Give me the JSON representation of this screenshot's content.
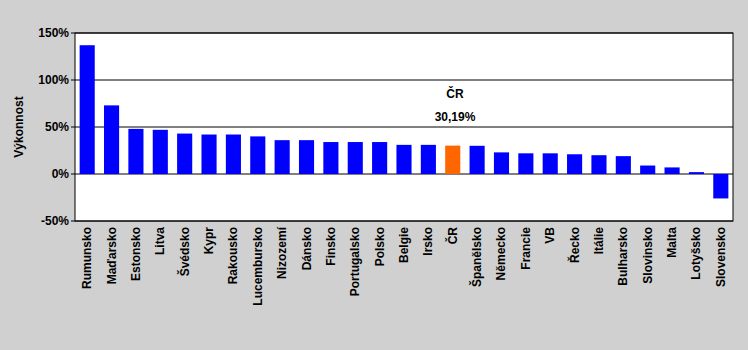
{
  "chart_data": {
    "type": "bar",
    "y_label": "Výkonnost",
    "annotations": [
      "ČR",
      "30,19%"
    ],
    "categories": [
      "Rumunsko",
      "Maďarsko",
      "Estonsko",
      "Litva",
      "Švédsko",
      "Kypr",
      "Rakousko",
      "Lucembursko",
      "Nizozemí",
      "Dánsko",
      "Finsko",
      "Portugalsko",
      "Polsko",
      "Belgie",
      "Irsko",
      "ČR",
      "Španělsko",
      "Německo",
      "Francie",
      "VB",
      "Řecko",
      "Itálie",
      "Bulharsko",
      "Slovinsko",
      "Malta",
      "Lotyšsko",
      "Slovensko"
    ],
    "values": [
      137,
      73,
      48,
      47,
      43,
      42,
      42,
      40,
      36,
      36,
      34,
      34,
      34,
      31,
      31,
      30.19,
      30,
      23,
      22,
      22,
      21,
      20,
      19,
      9,
      7,
      2,
      -26
    ],
    "colors": [
      "#0000ff",
      "#0000ff",
      "#0000ff",
      "#0000ff",
      "#0000ff",
      "#0000ff",
      "#0000ff",
      "#0000ff",
      "#0000ff",
      "#0000ff",
      "#0000ff",
      "#0000ff",
      "#0000ff",
      "#0000ff",
      "#0000ff",
      "#ff6600",
      "#0000ff",
      "#0000ff",
      "#0000ff",
      "#0000ff",
      "#0000ff",
      "#0000ff",
      "#0000ff",
      "#0000ff",
      "#0000ff",
      "#0000ff",
      "#0000ff"
    ],
    "ylim": [
      -50,
      150
    ],
    "yticks": [
      {
        "value": -50,
        "label": "-50%"
      },
      {
        "value": 0,
        "label": "0%"
      },
      {
        "value": 50,
        "label": "50%"
      },
      {
        "value": 100,
        "label": "100%"
      },
      {
        "value": 150,
        "label": "150%"
      }
    ],
    "grid": true
  }
}
